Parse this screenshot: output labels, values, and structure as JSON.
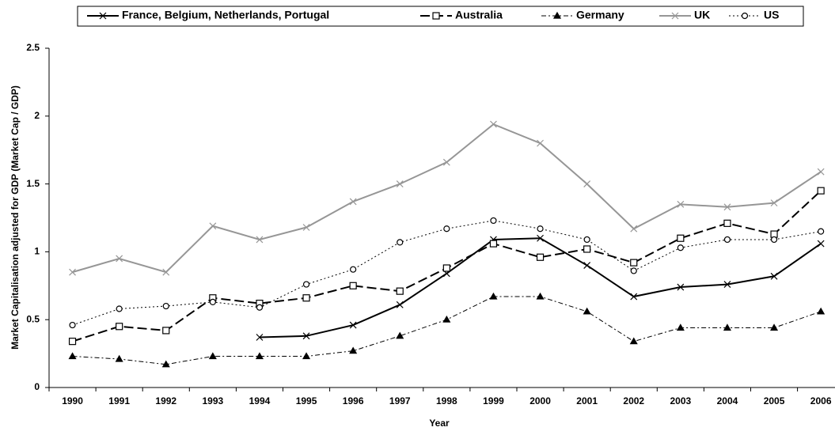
{
  "chart_data": {
    "type": "line",
    "x_label": "Year",
    "y_label": "Market Capitalisation adjusted for GDP (Market Cap / GDP)",
    "categories": [
      "1990",
      "1991",
      "1992",
      "1993",
      "1994",
      "1995",
      "1996",
      "1997",
      "1998",
      "1999",
      "2000",
      "2001",
      "2002",
      "2003",
      "2004",
      "2005",
      "2006"
    ],
    "ylim": [
      0,
      2.5
    ],
    "yticks": [
      0,
      0.5,
      1,
      1.5,
      2,
      2.5
    ],
    "legend": "top",
    "series": [
      {
        "name": "France, Belgium, Netherlands, Portugal",
        "color": "#000000",
        "marker": "cross",
        "dash": "solid",
        "width": 2,
        "values": [
          null,
          null,
          null,
          null,
          0.37,
          0.38,
          0.46,
          0.61,
          0.84,
          1.09,
          1.1,
          0.9,
          0.67,
          0.74,
          0.76,
          0.82,
          1.06
        ]
      },
      {
        "name": "Australia",
        "color": "#000000",
        "marker": "square",
        "dash": "longdash",
        "width": 2,
        "values": [
          0.34,
          0.45,
          0.42,
          0.66,
          0.62,
          0.66,
          0.75,
          0.71,
          0.88,
          1.06,
          0.96,
          1.02,
          0.92,
          1.1,
          1.21,
          1.13,
          1.45
        ]
      },
      {
        "name": "Germany",
        "color": "#000000",
        "marker": "triangle",
        "dash": "dashdot",
        "width": 1,
        "values": [
          0.23,
          0.21,
          0.17,
          0.23,
          0.23,
          0.23,
          0.27,
          0.38,
          0.5,
          0.67,
          0.67,
          0.56,
          0.34,
          0.44,
          0.44,
          0.44,
          0.56
        ]
      },
      {
        "name": "UK",
        "color": "#969696",
        "marker": "cross",
        "dash": "solid",
        "width": 2,
        "values": [
          0.85,
          0.95,
          0.85,
          1.19,
          1.09,
          1.18,
          1.37,
          1.5,
          1.66,
          1.94,
          1.8,
          1.5,
          1.17,
          1.35,
          1.33,
          1.36,
          1.59
        ]
      },
      {
        "name": "US",
        "color": "#000000",
        "marker": "circle",
        "dash": "dot",
        "width": 1,
        "values": [
          0.46,
          0.58,
          0.6,
          0.63,
          0.59,
          0.76,
          0.87,
          1.07,
          1.17,
          1.23,
          1.17,
          1.09,
          0.86,
          1.03,
          1.09,
          1.09,
          1.15
        ]
      }
    ]
  }
}
